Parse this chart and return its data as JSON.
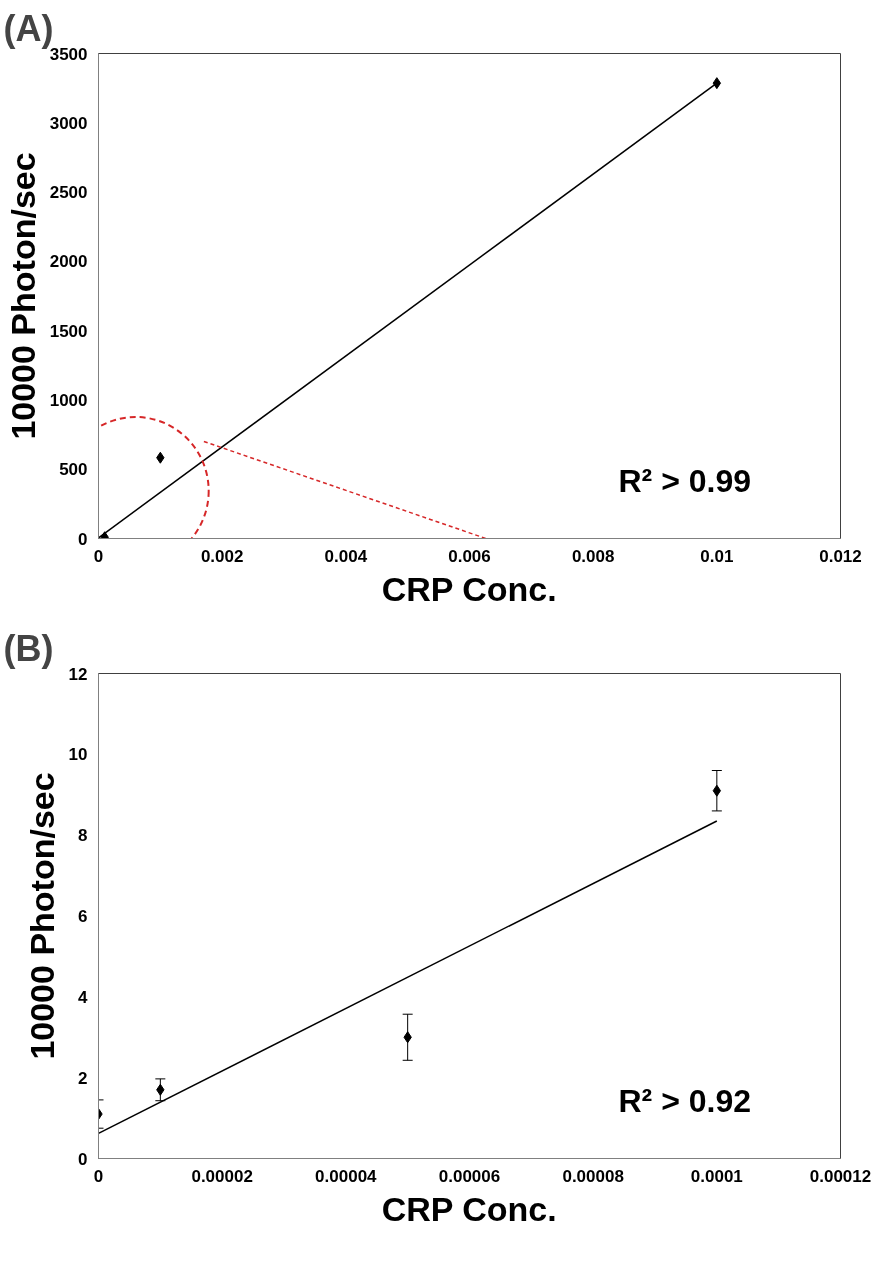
{
  "chart_data": [
    {
      "type": "scatter",
      "title": "(A)",
      "xlabel": "CRP Conc.",
      "ylabel": "10000 Photon/sec",
      "grid": false,
      "xlim": [
        0,
        0.012
      ],
      "xticks": [
        0,
        0.002,
        0.004,
        0.006,
        0.008,
        0.01,
        0.012
      ],
      "ylim": [
        0,
        3500
      ],
      "yticks": [
        0,
        500,
        1000,
        1500,
        2000,
        2500,
        3000,
        3500
      ],
      "series": [
        {
          "marker": "diamond",
          "color": "#000000",
          "x": [
            0.0001,
            0.001,
            0.01
          ],
          "values": [
            9,
            583,
            3286
          ]
        },
        {
          "type": "line",
          "color": "#000000",
          "x": [
            0,
            0.01
          ],
          "values": [
            5,
            3286
          ]
        }
      ],
      "annotations": [
        "R² > 0.99"
      ]
    },
    {
      "type": "scatter",
      "title": "(B)",
      "xlabel": "CRP Conc.",
      "ylabel": "10000 Photon/sec",
      "grid": false,
      "xlim": [
        0,
        0.00012
      ],
      "xticks": [
        0,
        {
          "value": 2e-05,
          "label": "0.00002"
        },
        {
          "value": 4e-05,
          "label": "0.00004"
        },
        {
          "value": 6e-05,
          "label": "0.00006"
        },
        {
          "value": 8e-05,
          "label": "0.00008"
        },
        {
          "value": 0.0001,
          "label": "0.0001"
        },
        {
          "value": 0.00012,
          "label": "0.00012"
        }
      ],
      "ylim": [
        0,
        12
      ],
      "yticks": [
        0,
        2,
        4,
        6,
        8,
        10,
        12
      ],
      "series": [
        {
          "marker": "diamond",
          "color": "#000000",
          "x": [
            0,
            1e-05,
            5e-05,
            0.0001
          ],
          "values": [
            1.1,
            1.7,
            3.0,
            9.1
          ],
          "errors": [
            0.35,
            0.27,
            0.57,
            0.5
          ]
        },
        {
          "type": "line",
          "color": "#000000",
          "x": [
            0,
            0.0001
          ],
          "values": [
            0.62,
            8.35
          ]
        }
      ],
      "annotations": [
        "R² > 0.92"
      ]
    }
  ]
}
